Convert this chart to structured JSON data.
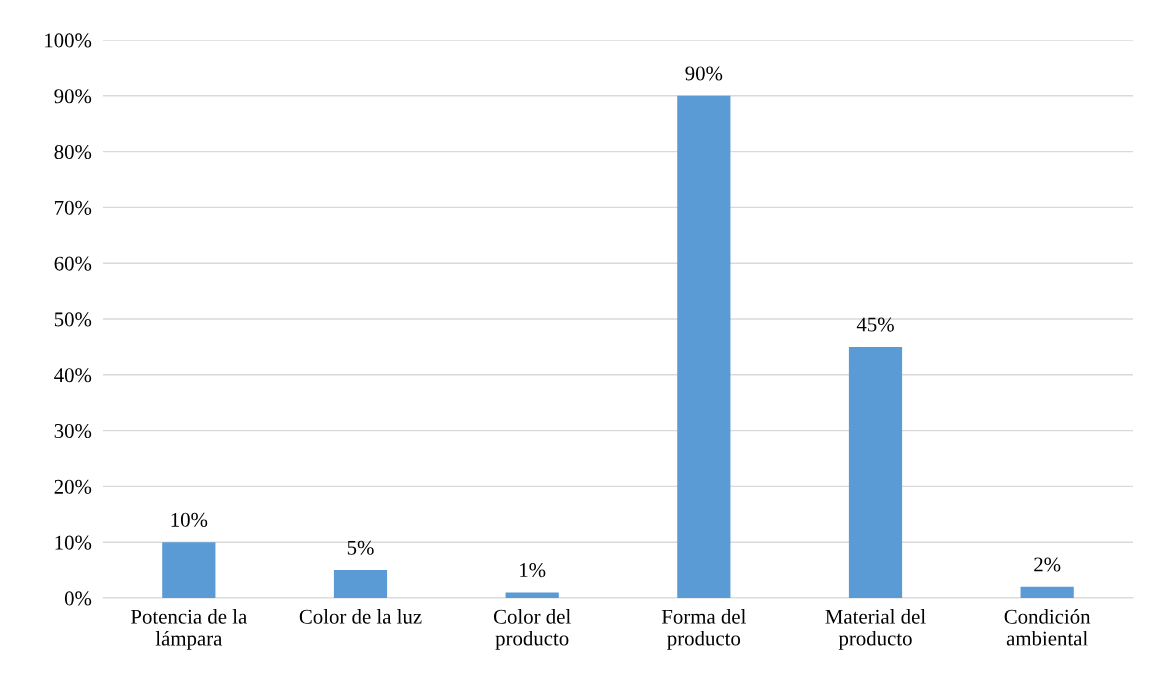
{
  "chart_data": {
    "type": "bar",
    "categories": [
      "Potencia de la\nlámpara",
      "Color de la luz",
      "Color del\nproducto",
      "Forma del\nproducto",
      "Material del\nproducto",
      "Condición\nambiental"
    ],
    "values": [
      10,
      5,
      1,
      90,
      45,
      2
    ],
    "value_labels": [
      "10%",
      "5%",
      "1%",
      "90%",
      "45%",
      "2%"
    ],
    "color": "#5b9bd5",
    "ylim": [
      0,
      100
    ],
    "yticks": [
      {
        "value": 0,
        "label": "0%"
      },
      {
        "value": 10,
        "label": "10%"
      },
      {
        "value": 20,
        "label": "20%"
      },
      {
        "value": 30,
        "label": "30%"
      },
      {
        "value": 40,
        "label": "40%"
      },
      {
        "value": 50,
        "label": "50%"
      },
      {
        "value": 60,
        "label": "60%"
      },
      {
        "value": 70,
        "label": "70%"
      },
      {
        "value": 80,
        "label": "80%"
      },
      {
        "value": 90,
        "label": "90%"
      },
      {
        "value": 100,
        "label": "100%"
      }
    ],
    "grid": "y",
    "legend": false
  }
}
